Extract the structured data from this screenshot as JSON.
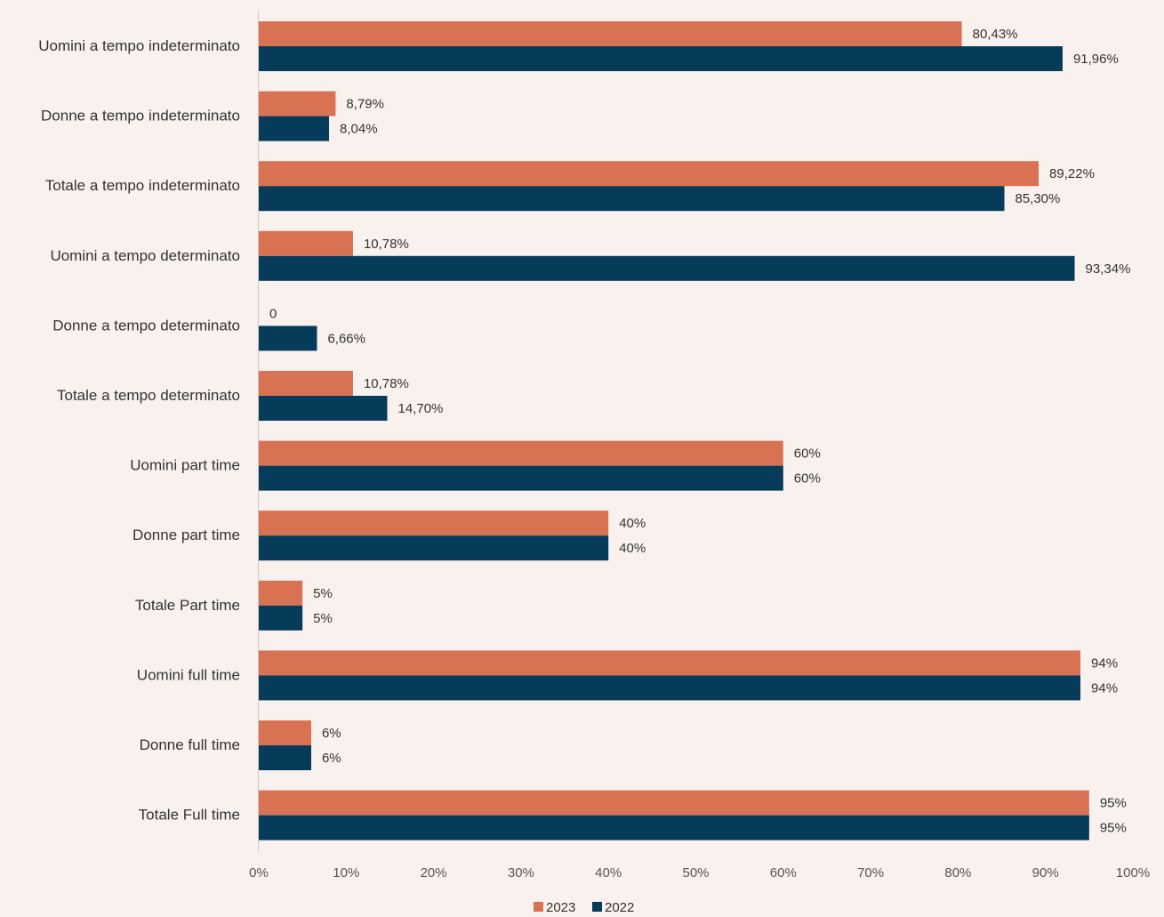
{
  "chart_data": {
    "type": "bar",
    "orientation": "horizontal",
    "categories": [
      "Uomini a tempo indeterminato",
      "Donne a tempo indeterminato",
      "Totale a tempo indeterminato",
      "Uomini a tempo determinato",
      "Donne  a tempo determinato",
      "Totale a tempo determinato",
      "Uomini part time",
      "Donne part time",
      "Totale Part time",
      "Uomini full time",
      "Donne full time",
      "Totale Full time"
    ],
    "series": [
      {
        "name": "2023",
        "color": "#d97252",
        "values": [
          80.43,
          8.79,
          89.22,
          10.78,
          0,
          10.78,
          60,
          40,
          5,
          94,
          6,
          95
        ],
        "labels": [
          "80,43%",
          "8,79%",
          "89,22%",
          "10,78%",
          "0",
          "10,78%",
          "60%",
          "40%",
          "5%",
          "94%",
          "6%",
          "95%"
        ]
      },
      {
        "name": "2022",
        "color": "#073b5a",
        "values": [
          91.96,
          8.04,
          85.3,
          93.34,
          6.66,
          14.7,
          60,
          40,
          5,
          94,
          6,
          95
        ],
        "labels": [
          "91,96%",
          "8,04%",
          "85,30%",
          "93,34%",
          "6,66%",
          "14,70%",
          "60%",
          "40%",
          "5%",
          "94%",
          "6%",
          "95%"
        ]
      }
    ],
    "xlim": [
      0,
      100
    ],
    "xticks": [
      "0%",
      "10%",
      "20%",
      "30%",
      "40%",
      "50%",
      "60%",
      "70%",
      "80%",
      "90%",
      "100%"
    ],
    "title": "",
    "xlabel": "",
    "ylabel": "",
    "grid": false,
    "legend_position": "bottom"
  }
}
